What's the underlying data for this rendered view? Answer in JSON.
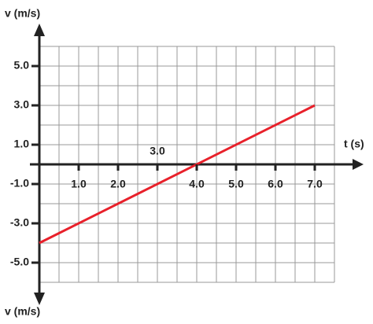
{
  "chart_data": {
    "type": "line",
    "xlabel": "t (s)",
    "ylabel": "v (m/s)",
    "x": [
      0,
      7
    ],
    "series": [
      {
        "name": null,
        "color": "#e8202a",
        "values": [
          -4,
          3
        ]
      }
    ],
    "xlim": [
      0,
      7.5
    ],
    "ylim": [
      -6,
      6
    ],
    "xticks": [
      {
        "value": 1,
        "label": "1.0"
      },
      {
        "value": 2,
        "label": "2.0"
      },
      {
        "value": 3,
        "label": "3.0"
      },
      {
        "value": 4,
        "label": "4.0"
      },
      {
        "value": 5,
        "label": "5.0"
      },
      {
        "value": 6,
        "label": "6.0"
      },
      {
        "value": 7,
        "label": "7.0"
      }
    ],
    "yticks": [
      {
        "value": -5,
        "label": "-5.0"
      },
      {
        "value": -3,
        "label": "-3.0"
      },
      {
        "value": -1,
        "label": "-1.0"
      },
      {
        "value": 1,
        "label": "1.0"
      },
      {
        "value": 3,
        "label": "3.0"
      },
      {
        "value": 5,
        "label": "5.0"
      }
    ],
    "grid": true
  }
}
